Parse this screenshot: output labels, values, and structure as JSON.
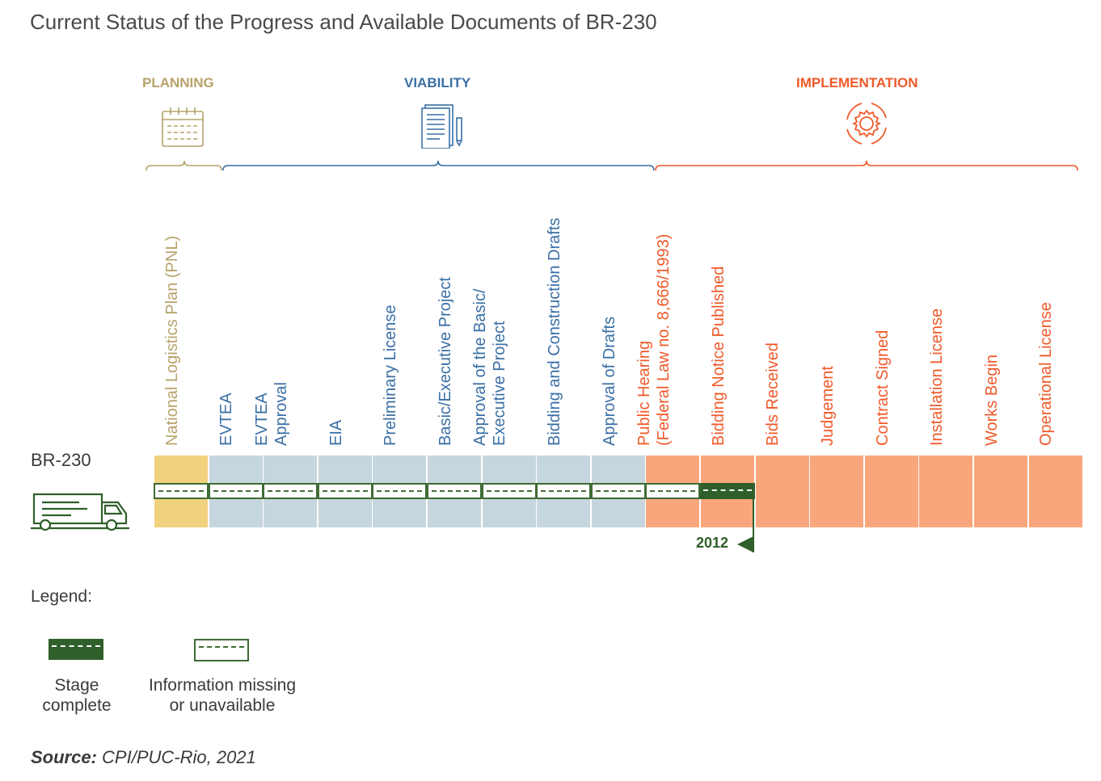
{
  "title": "Current Status of the Progress and Available Documents of BR-230",
  "phases": {
    "planning": {
      "label": "PLANNING",
      "color": "#b7a26a",
      "icon": "calendar-icon"
    },
    "viability": {
      "label": "VIABILITY",
      "color": "#3a6fa6",
      "icon": "document-pen-icon"
    },
    "implementation": {
      "label": "IMPLEMENTATION",
      "color": "#ef5a2a",
      "icon": "gear-cycle-icon"
    }
  },
  "stages": [
    {
      "lines": [
        "National Logistics Plan (PNL)"
      ],
      "phase": "planning"
    },
    {
      "lines": [
        "EVTEA"
      ],
      "phase": "viability"
    },
    {
      "lines": [
        "EVTEA",
        "Approval"
      ],
      "phase": "viability"
    },
    {
      "lines": [
        "EIA"
      ],
      "phase": "viability"
    },
    {
      "lines": [
        "Preliminary License"
      ],
      "phase": "viability"
    },
    {
      "lines": [
        "Basic/Executive Project"
      ],
      "phase": "viability"
    },
    {
      "lines": [
        "Approval of the Basic/",
        "Executive Project"
      ],
      "phase": "viability"
    },
    {
      "lines": [
        "Bidding and Construction Drafts"
      ],
      "phase": "viability"
    },
    {
      "lines": [
        "Approval of Drafts"
      ],
      "phase": "viability"
    },
    {
      "lines": [
        "Public Hearing",
        "(Federal Law no. 8,666/1993)"
      ],
      "phase": "implementation"
    },
    {
      "lines": [
        "Bidding Notice Published"
      ],
      "phase": "implementation"
    },
    {
      "lines": [
        "Bids Received"
      ],
      "phase": "implementation"
    },
    {
      "lines": [
        "Judgement"
      ],
      "phase": "implementation"
    },
    {
      "lines": [
        "Contract Signed"
      ],
      "phase": "implementation"
    },
    {
      "lines": [
        "Installation License"
      ],
      "phase": "implementation"
    },
    {
      "lines": [
        "Works Begin"
      ],
      "phase": "implementation"
    },
    {
      "lines": [
        "Operational License"
      ],
      "phase": "implementation"
    }
  ],
  "row": {
    "name": "BR-230",
    "icon": "truck-icon",
    "status": [
      "missing",
      "missing",
      "missing",
      "missing",
      "missing",
      "missing",
      "missing",
      "missing",
      "missing",
      "missing",
      "complete",
      "none",
      "none",
      "none",
      "none",
      "none",
      "none"
    ],
    "marker_year": "2012"
  },
  "cell_colors": {
    "planning": "#f0d17e",
    "viability": "#c6d6de",
    "implementation": "#f9a67c"
  },
  "legend": {
    "title": "Legend:",
    "complete": "Stage\ncomplete",
    "missing": "Information missing\nor unavailable"
  },
  "source": {
    "label": "Source:",
    "text": " CPI/PUC-Rio, 2021"
  }
}
